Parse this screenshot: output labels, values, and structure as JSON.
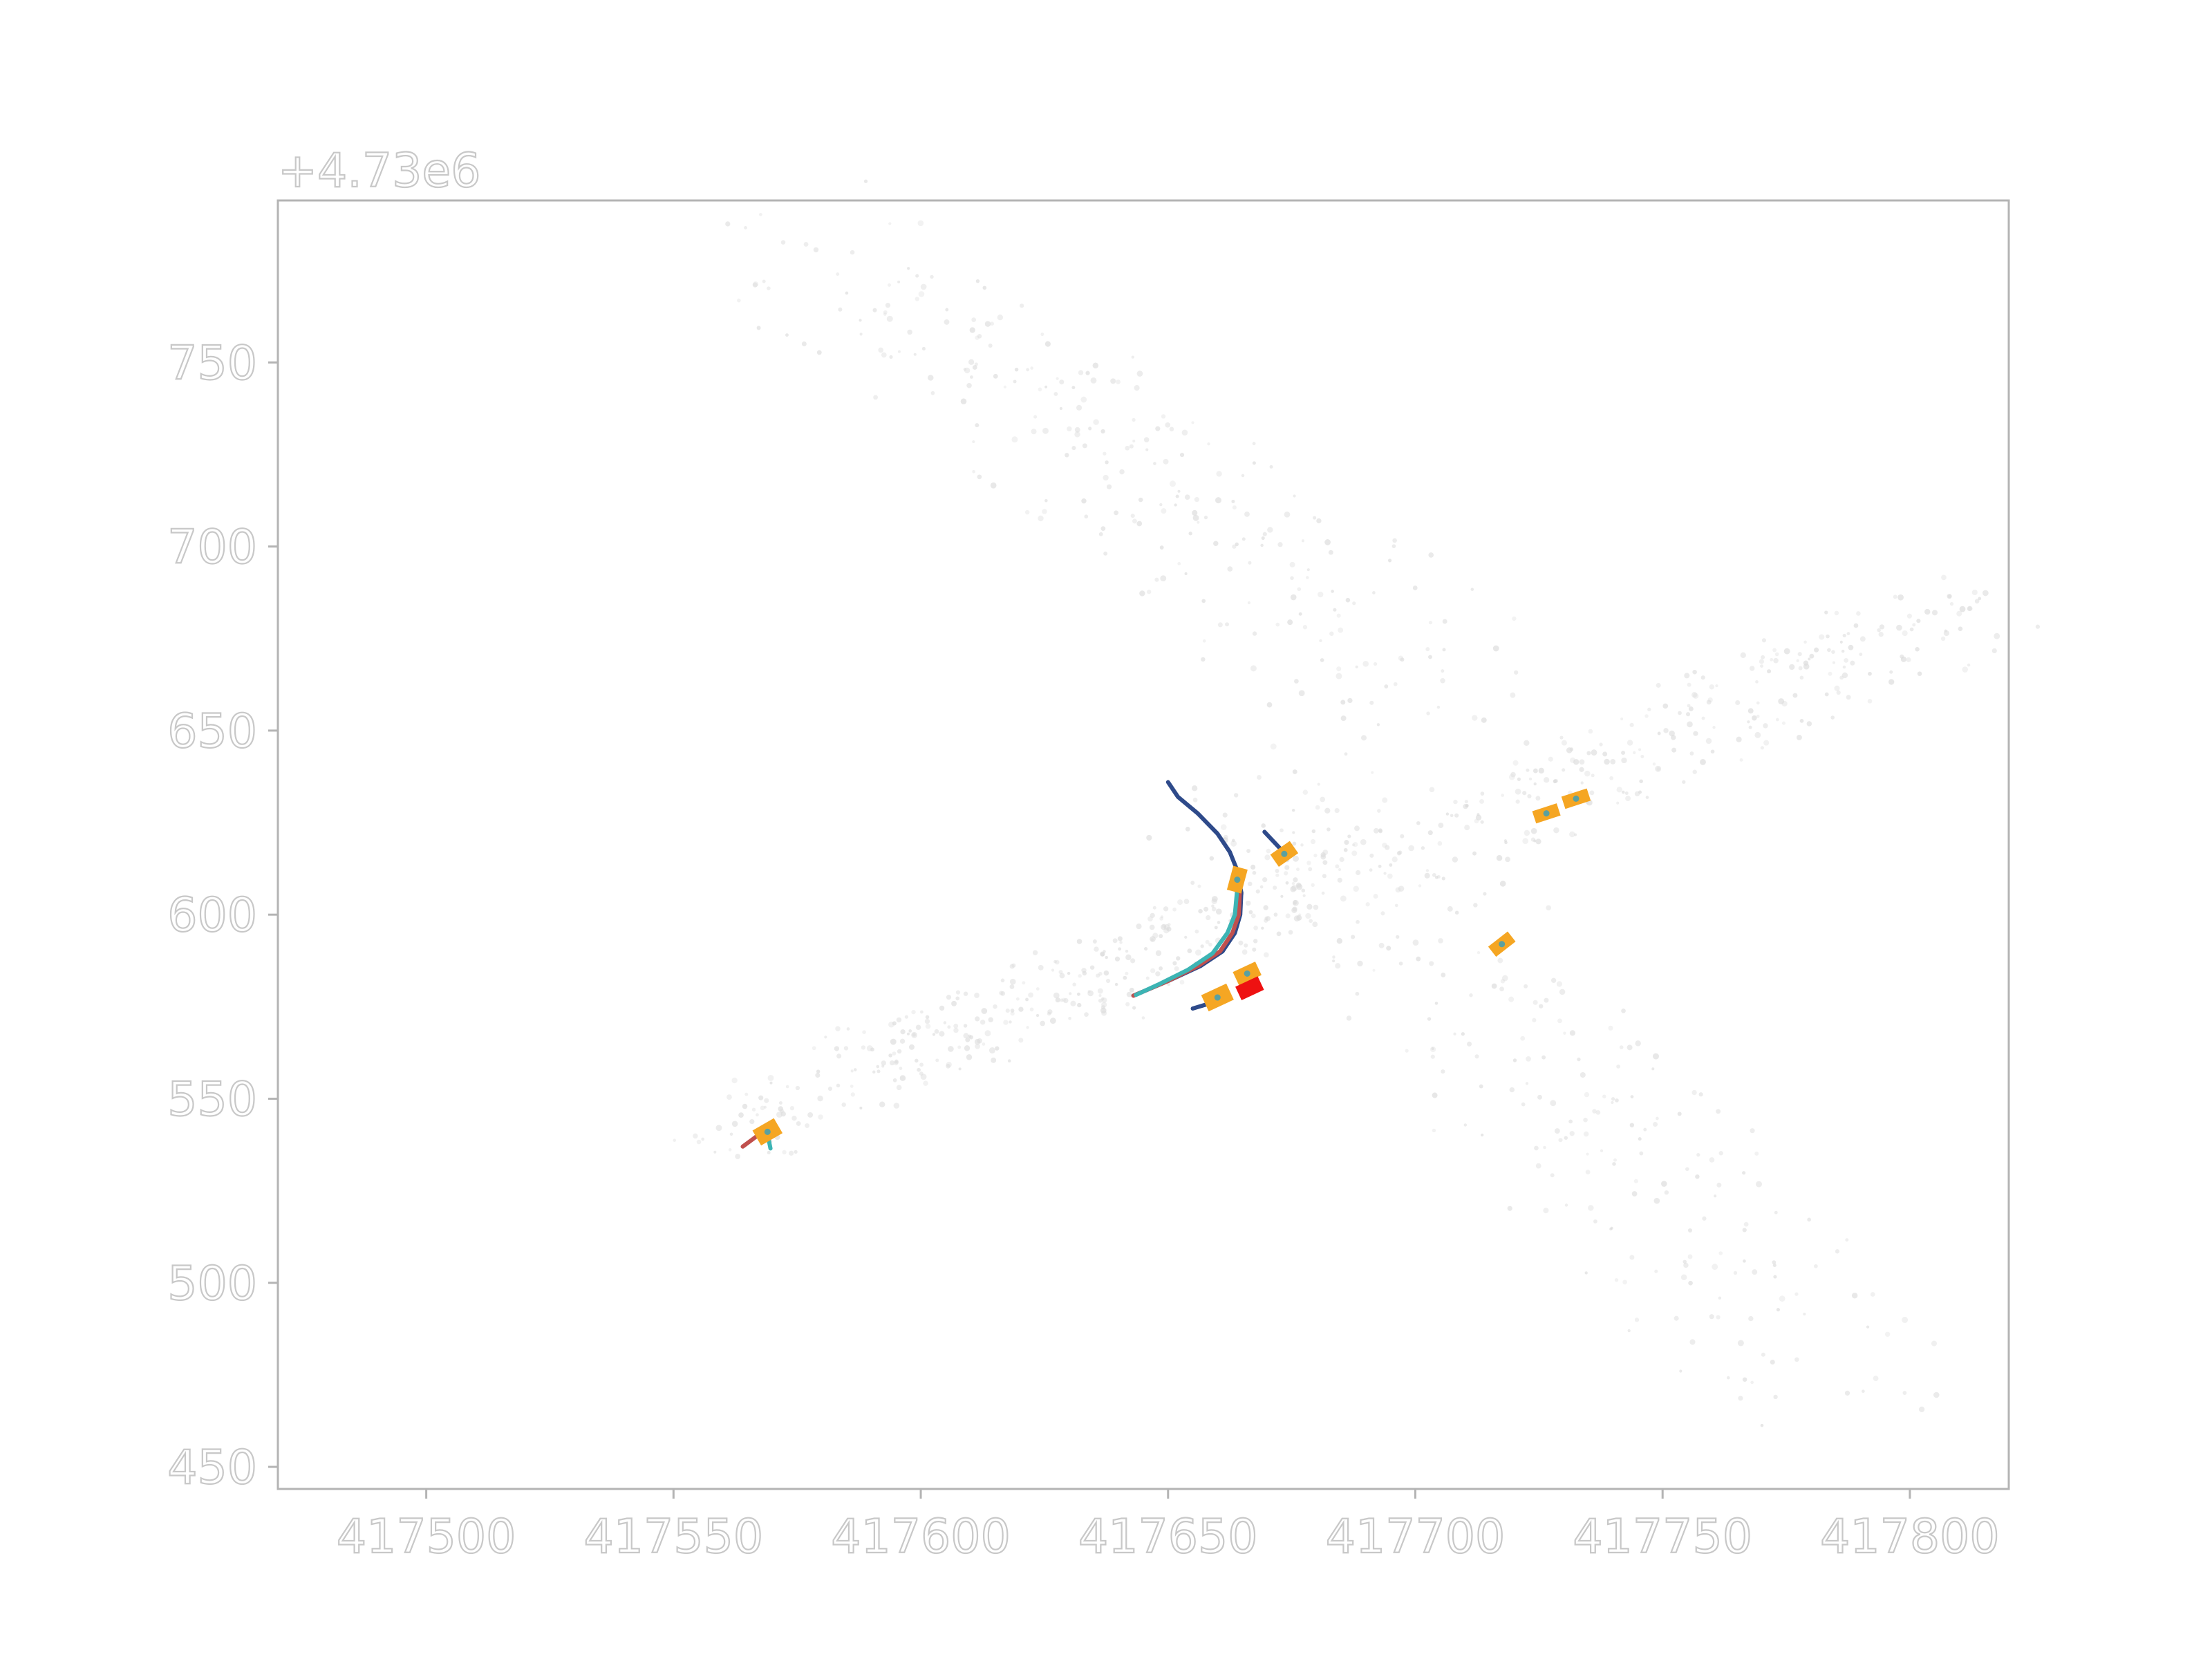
{
  "chart_data": {
    "type": "scatter",
    "title": "",
    "xlabel": "",
    "ylabel": "",
    "y_offset_label": "+4.73e6",
    "xlim": [
      417470,
      417820
    ],
    "ylim": [
      444,
      794
    ],
    "x_ticks": [
      417500,
      417550,
      417600,
      417650,
      417700,
      417750,
      417800
    ],
    "y_ticks": [
      450,
      500,
      550,
      600,
      650,
      700,
      750
    ],
    "grid": false,
    "legend": "none",
    "colors": {
      "axis": "#b4b4b4",
      "tick_text_outline": "#c8c8c8",
      "background_points": "#dcdcdc",
      "track_blue": "#2e4a8a",
      "track_red": "#c0504d",
      "track_teal": "#3cb4b4",
      "agent_box": "#f5a623",
      "agent_center": "#5aa0a0",
      "ego_box": "#ee1111"
    },
    "series": [
      {
        "kind": "trajectory",
        "color": "#2e4a8a",
        "x": [
          417650.0,
          417652.0,
          417656.0,
          417660.0,
          417662.5,
          417664.0,
          417664.8,
          417664.6,
          417663.5,
          417661.0,
          417656.5,
          417650.0,
          417643.0
        ],
        "y": [
          636.0,
          632.0,
          627.5,
          622.0,
          617.0,
          612.0,
          606.0,
          600.0,
          595.0,
          590.0,
          586.0,
          582.0,
          578.0
        ]
      },
      {
        "kind": "trajectory",
        "color": "#c0504d",
        "x": [
          417664.5,
          417664.3,
          417663.0,
          417660.5,
          417656.0,
          417650.0,
          417643.0
        ],
        "y": [
          606.0,
          600.0,
          595.0,
          590.0,
          586.0,
          582.0,
          578.0
        ]
      },
      {
        "kind": "trajectory",
        "color": "#3cb4b4",
        "x": [
          417664.0,
          417663.5,
          417662.0,
          417659.0,
          417654.0,
          417648.0,
          417643.5
        ],
        "y": [
          607.0,
          600.0,
          595.0,
          589.5,
          585.0,
          581.0,
          578.2
        ]
      },
      {
        "kind": "trajectory",
        "color": "#2e4a8a",
        "x": [
          417655.0,
          417660.0
        ],
        "y": [
          574.5,
          576.5
        ]
      },
      {
        "kind": "trajectory",
        "color": "#2e4a8a",
        "x": [
          417669.5,
          417673.0
        ],
        "y": [
          622.5,
          617.5
        ]
      },
      {
        "kind": "trajectory",
        "color": "#c0504d",
        "x": [
          417564.0,
          417566.0,
          417568.5
        ],
        "y": [
          537.0,
          539.0,
          541.5
        ]
      },
      {
        "kind": "trajectory",
        "color": "#3cb4b4",
        "x": [
          417569.0,
          417569.3,
          417569.6
        ],
        "y": [
          541.0,
          538.5,
          536.5
        ]
      }
    ],
    "agents": [
      {
        "x": 417569.0,
        "y": 541.0,
        "width": 3.5,
        "length": 5.0,
        "heading_deg": 30,
        "ego": false
      },
      {
        "x": 417664.0,
        "y": 609.5,
        "width": 3.0,
        "length": 5.0,
        "heading_deg": 75,
        "ego": false
      },
      {
        "x": 417673.5,
        "y": 616.5,
        "width": 3.0,
        "length": 4.8,
        "heading_deg": 35,
        "ego": false
      },
      {
        "x": 417660.0,
        "y": 577.5,
        "width": 3.6,
        "length": 5.6,
        "heading_deg": 25,
        "ego": false
      },
      {
        "x": 417666.0,
        "y": 584.0,
        "width": 3.0,
        "length": 5.0,
        "heading_deg": 25,
        "ego": false
      },
      {
        "x": 417666.5,
        "y": 580.0,
        "width": 3.0,
        "length": 5.0,
        "heading_deg": 25,
        "ego": true
      },
      {
        "x": 417726.5,
        "y": 627.5,
        "width": 2.6,
        "length": 5.2,
        "heading_deg": 18,
        "ego": false
      },
      {
        "x": 417732.5,
        "y": 631.5,
        "width": 2.6,
        "length": 5.4,
        "heading_deg": 18,
        "ego": false
      },
      {
        "x": 417717.5,
        "y": 592.0,
        "width": 2.6,
        "length": 5.0,
        "heading_deg": 38,
        "ego": false
      }
    ]
  }
}
